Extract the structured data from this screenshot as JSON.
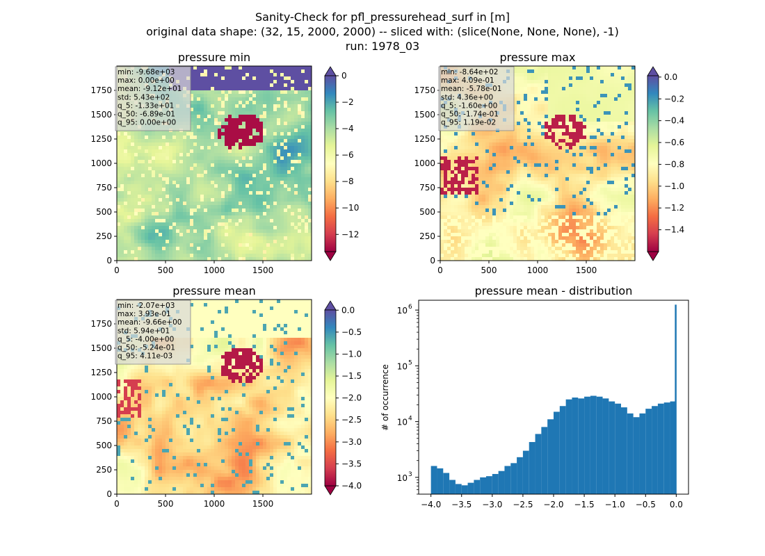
{
  "figure": {
    "title_lines": [
      "Sanity-Check for pfl_pressurehead_surf in [m]",
      "original data shape: (32, 15, 2000, 2000) -- sliced with: (slice(None, None, None), -1)",
      "run: 1978_03"
    ]
  },
  "panels": [
    {
      "title": "pressure min",
      "stats": [
        "min: -9.68e+03",
        "max: 0.00e+00",
        "mean: -9.12e+01",
        "std: 5.43e+02",
        "q_5: -1.33e+01",
        "q_50: -6.89e-01",
        "q_95: 0.00e+00"
      ],
      "xticks": [
        "0",
        "500",
        "1000",
        "1500"
      ],
      "yticks": [
        "0",
        "250",
        "500",
        "750",
        "1000",
        "1250",
        "1500",
        "1750"
      ],
      "colorbar": {
        "ticks": [
          "0",
          "−2",
          "−4",
          "−6",
          "−8",
          "−10",
          "−12"
        ],
        "vmin": -13.3,
        "vmax": 0,
        "ext_low": true,
        "ext_high": true
      }
    },
    {
      "title": "pressure max",
      "stats": [
        "min: -8.64e+02",
        "max: 4.09e-01",
        "mean: -5.78e-01",
        "std: 4.36e+00",
        "q_5: -1.60e+00",
        "q_50: -1.74e-01",
        "q_95: 1.19e-02"
      ],
      "xticks": [
        "0",
        "500",
        "1000",
        "1500"
      ],
      "yticks": [
        "0",
        "250",
        "500",
        "750",
        "1000",
        "1250",
        "1500",
        "1750"
      ],
      "colorbar": {
        "ticks": [
          "0.0",
          "−0.2",
          "−0.4",
          "−0.6",
          "−0.8",
          "−1.0",
          "−1.2",
          "−1.4"
        ],
        "vmin": -1.6,
        "vmax": 0.0119,
        "ext_low": true,
        "ext_high": true
      }
    },
    {
      "title": "pressure mean",
      "stats": [
        "min: -2.07e+03",
        "max: 3.93e-01",
        "mean: -9.66e+00",
        "std: 5.94e+01",
        "q_5: -4.00e+00",
        "q_50: -5.24e-01",
        "q_95: 4.11e-03"
      ],
      "xticks": [
        "0",
        "500",
        "1000",
        "1500"
      ],
      "yticks": [
        "0",
        "250",
        "500",
        "750",
        "1000",
        "1250",
        "1500",
        "1750"
      ],
      "colorbar": {
        "ticks": [
          "0.0",
          "−0.5",
          "−1.0",
          "−1.5",
          "−2.0",
          "−2.5",
          "−3.0",
          "−3.5",
          "−4.0"
        ],
        "vmin": -4.0,
        "vmax": 0.0041,
        "ext_low": true,
        "ext_high": true
      }
    }
  ],
  "histogram": {
    "title": "pressure mean - distribution",
    "ylabel": "# of occurrence",
    "xticks": [
      "−4.0",
      "−3.5",
      "−3.0",
      "−2.5",
      "−2.0",
      "−1.5",
      "−1.0",
      "−0.5",
      "0.0"
    ],
    "ytick_labels": [
      "10",
      "10",
      "10",
      "10"
    ],
    "ytick_exps": [
      "3",
      "4",
      "5",
      "6"
    ]
  },
  "colors": {
    "spectral": [
      "#9e0142",
      "#d53e4f",
      "#f46d43",
      "#fdae61",
      "#fee08b",
      "#ffffbf",
      "#e6f598",
      "#abdda4",
      "#66c2a5",
      "#3288bd",
      "#5e4fa2"
    ],
    "hist_bar": "#1f77b4"
  },
  "chart_data": [
    {
      "type": "heatmap",
      "title": "pressure min",
      "xlim": [
        0,
        2000
      ],
      "ylim": [
        0,
        2000
      ],
      "colorbar_range": [
        -13.3,
        0
      ],
      "colormap": "Spectral"
    },
    {
      "type": "heatmap",
      "title": "pressure max",
      "xlim": [
        0,
        2000
      ],
      "ylim": [
        0,
        2000
      ],
      "colorbar_range": [
        -1.6,
        0.0119
      ],
      "colormap": "Spectral"
    },
    {
      "type": "heatmap",
      "title": "pressure mean",
      "xlim": [
        0,
        2000
      ],
      "ylim": [
        0,
        2000
      ],
      "colorbar_range": [
        -4.0,
        0.0041
      ],
      "colormap": "Spectral"
    },
    {
      "type": "bar",
      "title": "pressure mean - distribution",
      "ylabel": "# of occurrence",
      "yscale": "log",
      "xlim": [
        -4.2,
        0.2
      ],
      "ylim": [
        500,
        1500000
      ],
      "x": [
        -4.0,
        -3.9,
        -3.8,
        -3.7,
        -3.6,
        -3.5,
        -3.4,
        -3.3,
        -3.2,
        -3.1,
        -3.0,
        -2.9,
        -2.8,
        -2.7,
        -2.6,
        -2.5,
        -2.4,
        -2.3,
        -2.2,
        -2.1,
        -2.0,
        -1.9,
        -1.8,
        -1.7,
        -1.6,
        -1.5,
        -1.4,
        -1.3,
        -1.2,
        -1.1,
        -1.0,
        -0.9,
        -0.8,
        -0.7,
        -0.6,
        -0.5,
        -0.4,
        -0.3,
        -0.2,
        -0.1,
        0.0
      ],
      "values": [
        1600,
        1450,
        1200,
        900,
        760,
        720,
        800,
        900,
        1000,
        1050,
        1150,
        1300,
        1600,
        1800,
        2300,
        3000,
        4300,
        6000,
        8000,
        11000,
        15000,
        19000,
        25000,
        27000,
        26000,
        28000,
        29000,
        28000,
        26000,
        23000,
        21000,
        18000,
        14000,
        12000,
        14000,
        17000,
        19000,
        21000,
        22000,
        23000,
        1250000
      ]
    }
  ]
}
